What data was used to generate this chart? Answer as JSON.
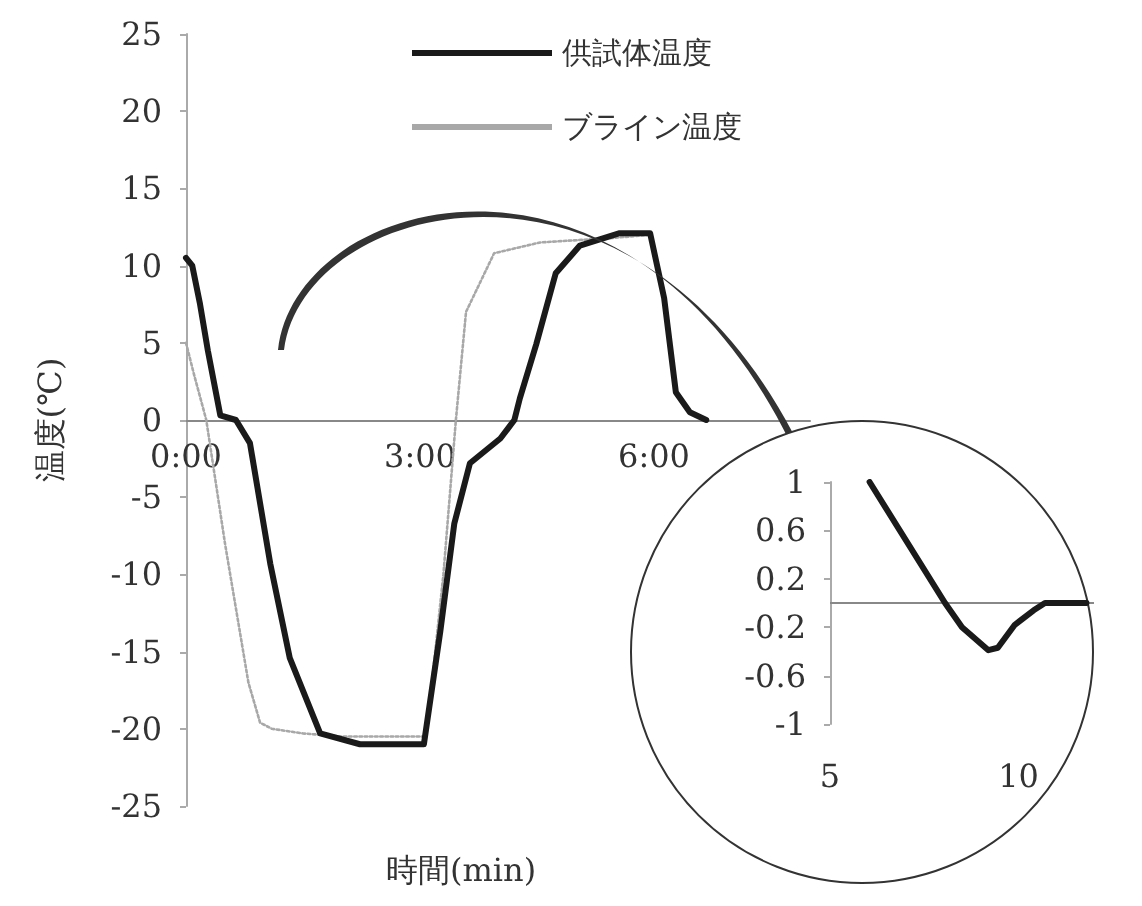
{
  "chart_data": [
    {
      "type": "line",
      "xlabel": "時間(min)",
      "ylabel": "温度(℃)",
      "legend": "top right",
      "marker": "none",
      "grid": false,
      "xlim": [
        0,
        8
      ],
      "xticks": [
        {
          "value": 0,
          "label": "0:00"
        },
        {
          "value": 3,
          "label": "3:00"
        },
        {
          "value": 6,
          "label": "6:00"
        }
      ],
      "ylim": [
        -25,
        25
      ],
      "yticks": [
        -25,
        -20,
        -15,
        -10,
        -5,
        0,
        5,
        10,
        15,
        20,
        25
      ],
      "series": [
        {
          "name": "供試体温度",
          "color": "#1a1a1a",
          "line_style": "solid",
          "x": [
            0,
            0.08,
            0.18,
            0.28,
            0.44,
            0.64,
            0.82,
            1.08,
            1.33,
            1.72,
            2.23,
            3.05,
            3.26,
            3.44,
            3.64,
            4.03,
            4.21,
            4.28,
            4.49,
            4.74,
            5.05,
            5.56,
            5.95,
            6.13,
            6.28,
            6.46,
            6.67
          ],
          "values": [
            10.5,
            10,
            7.5,
            4.5,
            0.3,
            0,
            -1.5,
            -9.3,
            -15.4,
            -20.3,
            -21,
            -21,
            -13.7,
            -6.7,
            -2.8,
            -1.2,
            0,
            1.4,
            4.9,
            9.5,
            11.3,
            12.1,
            12.1,
            7.9,
            1.8,
            0.5,
            0
          ]
        },
        {
          "name": "ブライン温度",
          "color": "#a8a8a8",
          "line_style": "dotted",
          "x": [
            0,
            0.1,
            0.26,
            0.5,
            0.8,
            0.95,
            1.1,
            1.5,
            2,
            2.5,
            3.08,
            3.3,
            3.46,
            3.59,
            3.95,
            4.54,
            5.5,
            5.95
          ],
          "values": [
            5,
            3,
            0,
            -8,
            -17,
            -19.6,
            -20,
            -20.3,
            -20.5,
            -20.5,
            -20.5,
            -10,
            0,
            7,
            10.8,
            11.5,
            11.8,
            12
          ]
        }
      ]
    },
    {
      "type": "line",
      "marker": "none",
      "grid": false,
      "legend": false,
      "xlim": [
        5,
        12
      ],
      "xticks": [
        5,
        10
      ],
      "ylim": [
        -1,
        1
      ],
      "yticks": [
        -1,
        -0.6,
        -0.2,
        0.2,
        0.6,
        1
      ],
      "ref_lines": [
        {
          "axis": "y",
          "value": 0
        }
      ],
      "series": [
        {
          "color": "#1a1a1a",
          "line_style": "solid",
          "x": [
            6.05,
            8.05,
            8.5,
            9.2,
            9.45,
            9.9,
            10.4,
            10.7,
            11.8
          ],
          "values": [
            1,
            0,
            -0.2,
            -0.39,
            -0.37,
            -0.18,
            -0.06,
            0,
            0
          ]
        }
      ]
    }
  ]
}
